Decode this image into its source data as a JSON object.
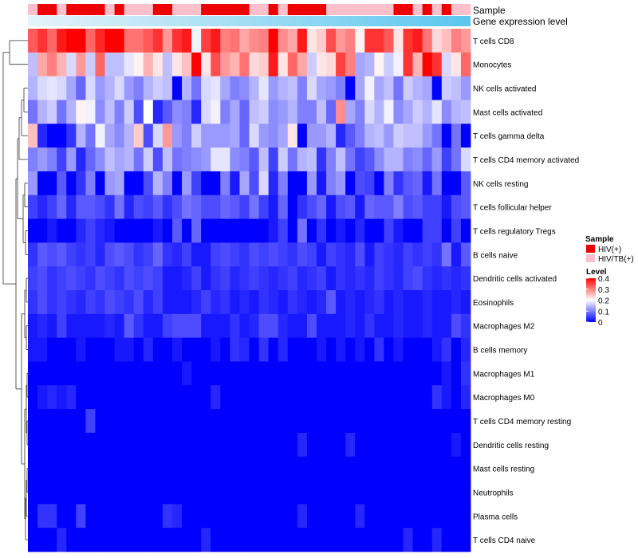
{
  "chart_data": {
    "type": "heatmap",
    "value_range": [
      0,
      0.4
    ],
    "annotation_rows": [
      "Sample",
      "Gene expression level"
    ],
    "sample_groups": [
      "HIV/TB(+)",
      "HIV(+)",
      "HIV(+)",
      "HIV/TB(+)",
      "HIV(+)",
      "HIV(+)",
      "HIV(+)",
      "HIV(+)",
      "HIV/TB(+)",
      "HIV(+)",
      "HIV/TB(+)",
      "HIV/TB(+)",
      "HIV/TB(+)",
      "HIV(+)",
      "HIV(+)",
      "HIV/TB(+)",
      "HIV/TB(+)",
      "HIV/TB(+)",
      "HIV(+)",
      "HIV(+)",
      "HIV(+)",
      "HIV(+)",
      "HIV(+)",
      "HIV/TB(+)",
      "HIV/TB(+)",
      "HIV(+)",
      "HIV/TB(+)",
      "HIV(+)",
      "HIV(+)",
      "HIV(+)",
      "HIV(+)",
      "HIV/TB(+)",
      "HIV/TB(+)",
      "HIV/TB(+)",
      "HIV/TB(+)",
      "HIV/TB(+)",
      "HIV/TB(+)",
      "HIV/TB(+)",
      "HIV(+)",
      "HIV(+)",
      "HIV/TB(+)",
      "HIV(+)",
      "HIV/TB(+)",
      "HIV(+)",
      "HIV/TB(+)",
      "HIV/TB(+)"
    ],
    "rows": [
      "T cells CD8",
      "Monocytes",
      "NK cells activated",
      "Mast cells activated",
      "T cells gamma delta",
      "T cells CD4 memory activated",
      "NK cells resting",
      "T cells follicular helper",
      "T cells regulatory  Tregs",
      "B cells naive",
      "Dendritic cells activated",
      "Eosinophils",
      "Macrophages M2",
      "B cells memory",
      "Macrophages M1",
      "Macrophages M0",
      "T cells CD4 memory resting",
      "Dendritic cells resting",
      "Mast cells resting",
      "Neutrophils",
      "Plasma cells",
      "T cells CD4 naive"
    ],
    "values": [
      [
        0.33,
        0.36,
        0.32,
        0.38,
        0.4,
        0.4,
        0.32,
        0.37,
        0.4,
        0.4,
        0.31,
        0.31,
        0.33,
        0.36,
        0.28,
        0.36,
        0.38,
        0.19,
        0.35,
        0.38,
        0.3,
        0.31,
        0.27,
        0.29,
        0.3,
        0.4,
        0.29,
        0.27,
        0.38,
        0.22,
        0.24,
        0.34,
        0.28,
        0.3,
        0.21,
        0.36,
        0.36,
        0.33,
        0.22,
        0.36,
        0.38,
        0.31,
        0.23,
        0.25,
        0.3,
        0.28
      ],
      [
        0.15,
        0.27,
        0.3,
        0.26,
        0.17,
        0.28,
        0.16,
        0.32,
        0.15,
        0.15,
        0.18,
        0.21,
        0.26,
        0.22,
        0.15,
        0.22,
        0.25,
        0.4,
        0.22,
        0.34,
        0.28,
        0.26,
        0.31,
        0.23,
        0.24,
        0.38,
        0.22,
        0.32,
        0.27,
        0.16,
        0.22,
        0.23,
        0.35,
        0.3,
        0.13,
        0.14,
        0.21,
        0.16,
        0.19,
        0.36,
        0.26,
        0.4,
        0.36,
        0.17,
        0.22,
        0.32
      ],
      [
        0.14,
        0.17,
        0.18,
        0.17,
        0.13,
        0.08,
        0.17,
        0.12,
        0.14,
        0.17,
        0.12,
        0.1,
        0.14,
        0.16,
        0.15,
        0.0,
        0.14,
        0.09,
        0.17,
        0.18,
        0.13,
        0.1,
        0.11,
        0.14,
        0.18,
        0.12,
        0.14,
        0.15,
        0.1,
        0.17,
        0.13,
        0.12,
        0.1,
        0.0,
        0.13,
        0.19,
        0.13,
        0.15,
        0.09,
        0.16,
        0.14,
        0.13,
        0.0,
        0.16,
        0.15,
        0.12
      ],
      [
        0.09,
        0.14,
        0.16,
        0.09,
        0.14,
        0.21,
        0.19,
        0.11,
        0.15,
        0.1,
        0.16,
        0.06,
        0.2,
        0.03,
        0.07,
        0.11,
        0.1,
        0.03,
        0.17,
        0.19,
        0.1,
        0.13,
        0.08,
        0.15,
        0.16,
        0.11,
        0.12,
        0.14,
        0.1,
        0.1,
        0.15,
        0.08,
        0.29,
        0.13,
        0.1,
        0.17,
        0.14,
        0.19,
        0.11,
        0.13,
        0.16,
        0.14,
        0.18,
        0.11,
        0.14,
        0.15
      ],
      [
        0.25,
        0.03,
        0.0,
        0.0,
        0.04,
        0.14,
        0.09,
        0.19,
        0.13,
        0.11,
        0.14,
        0.24,
        0.06,
        0.17,
        0.28,
        0.12,
        0.1,
        0.16,
        0.12,
        0.12,
        0.12,
        0.13,
        0.08,
        0.17,
        0.12,
        0.11,
        0.13,
        0.22,
        0.0,
        0.12,
        0.12,
        0.14,
        0.03,
        0.07,
        0.1,
        0.14,
        0.15,
        0.12,
        0.16,
        0.15,
        0.15,
        0.12,
        0.09,
        0.0,
        0.09,
        0.0
      ],
      [
        0.1,
        0.12,
        0.1,
        0.05,
        0.12,
        0.03,
        0.08,
        0.11,
        0.15,
        0.13,
        0.14,
        0.09,
        0.16,
        0.06,
        0.15,
        0.09,
        0.1,
        0.11,
        0.12,
        0.18,
        0.18,
        0.11,
        0.1,
        0.07,
        0.15,
        0.05,
        0.16,
        0.09,
        0.14,
        0.15,
        0.04,
        0.1,
        0.15,
        0.09,
        0.05,
        0.07,
        0.11,
        0.14,
        0.14,
        0.1,
        0.11,
        0.08,
        0.12,
        0.05,
        0.09,
        0.17
      ],
      [
        0.12,
        0.0,
        0.0,
        0.07,
        0.0,
        0.04,
        0.1,
        0.0,
        0.12,
        0.13,
        0.0,
        0.0,
        0.06,
        0.14,
        0.1,
        0.0,
        0.12,
        0.05,
        0.0,
        0.0,
        0.1,
        0.02,
        0.13,
        0.06,
        0.17,
        0.03,
        0.1,
        0.0,
        0.0,
        0.12,
        0.02,
        0.1,
        0.12,
        0.0,
        0.06,
        0.05,
        0.0,
        0.1,
        0.04,
        0.07,
        0.08,
        0.02,
        0.09,
        0.0,
        0.0,
        0.07
      ],
      [
        0.05,
        0.03,
        0.05,
        0.08,
        0.03,
        0.07,
        0.07,
        0.06,
        0.04,
        0.09,
        0.03,
        0.06,
        0.05,
        0.07,
        0.04,
        0.06,
        0.09,
        0.08,
        0.06,
        0.06,
        0.08,
        0.07,
        0.05,
        0.09,
        0.05,
        0.02,
        0.08,
        0.0,
        0.04,
        0.06,
        0.08,
        0.02,
        0.06,
        0.07,
        0.02,
        0.08,
        0.07,
        0.07,
        0.1,
        0.06,
        0.07,
        0.05,
        0.05,
        0.02,
        0.06,
        0.07
      ],
      [
        0.0,
        0.0,
        0.02,
        0.0,
        0.0,
        0.03,
        0.05,
        0.03,
        0.02,
        0.0,
        0.0,
        0.0,
        0.0,
        0.02,
        0.0,
        0.07,
        0.0,
        0.08,
        0.0,
        0.0,
        0.0,
        0.0,
        0.0,
        0.0,
        0.0,
        0.02,
        0.05,
        0.0,
        0.09,
        0.0,
        0.04,
        0.0,
        0.02,
        0.0,
        0.03,
        0.0,
        0.0,
        0.05,
        0.02,
        0.0,
        0.0,
        0.05,
        0.05,
        0.0,
        0.05,
        0.0
      ],
      [
        0.04,
        0.07,
        0.06,
        0.07,
        0.05,
        0.04,
        0.05,
        0.03,
        0.06,
        0.07,
        0.06,
        0.04,
        0.05,
        0.08,
        0.04,
        0.03,
        0.05,
        0.02,
        0.02,
        0.05,
        0.06,
        0.05,
        0.04,
        0.06,
        0.05,
        0.06,
        0.05,
        0.04,
        0.06,
        0.05,
        0.02,
        0.05,
        0.04,
        0.03,
        0.06,
        0.02,
        0.05,
        0.04,
        0.03,
        0.05,
        0.04,
        0.05,
        0.04,
        0.09,
        0.02,
        0.07
      ],
      [
        0.05,
        0.06,
        0.04,
        0.05,
        0.06,
        0.05,
        0.04,
        0.06,
        0.05,
        0.04,
        0.06,
        0.05,
        0.06,
        0.05,
        0.02,
        0.02,
        0.03,
        0.05,
        0.02,
        0.04,
        0.05,
        0.03,
        0.04,
        0.05,
        0.04,
        0.03,
        0.04,
        0.05,
        0.03,
        0.04,
        0.05,
        0.02,
        0.04,
        0.03,
        0.04,
        0.03,
        0.05,
        0.04,
        0.03,
        0.05,
        0.06,
        0.04,
        0.03,
        0.04,
        0.03,
        0.04
      ],
      [
        0.04,
        0.06,
        0.04,
        0.05,
        0.04,
        0.03,
        0.05,
        0.04,
        0.06,
        0.05,
        0.04,
        0.06,
        0.03,
        0.05,
        0.02,
        0.02,
        0.02,
        0.03,
        0.05,
        0.03,
        0.04,
        0.02,
        0.03,
        0.02,
        0.04,
        0.03,
        0.02,
        0.04,
        0.03,
        0.02,
        0.03,
        0.07,
        0.02,
        0.03,
        0.02,
        0.03,
        0.04,
        0.02,
        0.03,
        0.02,
        0.02,
        0.03,
        0.02,
        0.02,
        0.03,
        0.02
      ],
      [
        0.02,
        0.03,
        0.02,
        0.05,
        0.02,
        0.02,
        0.02,
        0.02,
        0.03,
        0.02,
        0.07,
        0.04,
        0.02,
        0.02,
        0.05,
        0.06,
        0.06,
        0.06,
        0.02,
        0.02,
        0.02,
        0.04,
        0.02,
        0.03,
        0.06,
        0.06,
        0.03,
        0.02,
        0.02,
        0.06,
        0.02,
        0.02,
        0.02,
        0.03,
        0.02,
        0.04,
        0.02,
        0.02,
        0.03,
        0.02,
        0.02,
        0.03,
        0.02,
        0.02,
        0.06,
        0.04
      ],
      [
        0.02,
        0.02,
        0.0,
        0.0,
        0.0,
        0.02,
        0.0,
        0.0,
        0.0,
        0.02,
        0.02,
        0.0,
        0.03,
        0.0,
        0.0,
        0.02,
        0.0,
        0.0,
        0.0,
        0.02,
        0.0,
        0.04,
        0.03,
        0.0,
        0.04,
        0.0,
        0.03,
        0.0,
        0.0,
        0.0,
        0.02,
        0.0,
        0.02,
        0.0,
        0.02,
        0.0,
        0.04,
        0.0,
        0.02,
        0.0,
        0.0,
        0.0,
        0.02,
        0.04,
        0.0,
        0.03
      ],
      [
        0.0,
        0.0,
        0.0,
        0.0,
        0.0,
        0.0,
        0.0,
        0.0,
        0.0,
        0.0,
        0.0,
        0.0,
        0.0,
        0.0,
        0.0,
        0.0,
        0.02,
        0.0,
        0.0,
        0.0,
        0.0,
        0.0,
        0.0,
        0.0,
        0.0,
        0.0,
        0.0,
        0.0,
        0.0,
        0.0,
        0.0,
        0.0,
        0.0,
        0.0,
        0.0,
        0.0,
        0.0,
        0.0,
        0.0,
        0.0,
        0.0,
        0.0,
        0.0,
        0.02,
        0.0,
        0.04
      ],
      [
        0.0,
        0.02,
        0.03,
        0.02,
        0.03,
        0.0,
        0.0,
        0.0,
        0.0,
        0.0,
        0.0,
        0.0,
        0.0,
        0.0,
        0.0,
        0.0,
        0.0,
        0.0,
        0.0,
        0.03,
        0.0,
        0.0,
        0.0,
        0.0,
        0.0,
        0.0,
        0.0,
        0.0,
        0.0,
        0.0,
        0.0,
        0.0,
        0.0,
        0.0,
        0.0,
        0.0,
        0.0,
        0.0,
        0.0,
        0.0,
        0.0,
        0.0,
        0.04,
        0.02,
        0.0,
        0.03
      ],
      [
        0.0,
        0.0,
        0.0,
        0.0,
        0.0,
        0.0,
        0.05,
        0.0,
        0.0,
        0.0,
        0.0,
        0.0,
        0.0,
        0.0,
        0.0,
        0.0,
        0.0,
        0.0,
        0.0,
        0.0,
        0.0,
        0.0,
        0.0,
        0.0,
        0.0,
        0.0,
        0.0,
        0.0,
        0.0,
        0.0,
        0.0,
        0.0,
        0.0,
        0.0,
        0.0,
        0.0,
        0.0,
        0.0,
        0.0,
        0.0,
        0.0,
        0.0,
        0.0,
        0.0,
        0.0,
        0.0
      ],
      [
        0.0,
        0.0,
        0.0,
        0.0,
        0.0,
        0.0,
        0.0,
        0.0,
        0.0,
        0.0,
        0.0,
        0.0,
        0.0,
        0.0,
        0.0,
        0.0,
        0.0,
        0.0,
        0.0,
        0.0,
        0.0,
        0.0,
        0.0,
        0.0,
        0.0,
        0.0,
        0.0,
        0.0,
        0.03,
        0.0,
        0.0,
        0.0,
        0.0,
        0.03,
        0.0,
        0.0,
        0.0,
        0.0,
        0.0,
        0.0,
        0.0,
        0.0,
        0.0,
        0.0,
        0.02,
        0.0
      ],
      [
        0.0,
        0.0,
        0.0,
        0.0,
        0.0,
        0.0,
        0.0,
        0.0,
        0.0,
        0.0,
        0.0,
        0.0,
        0.0,
        0.0,
        0.0,
        0.0,
        0.0,
        0.0,
        0.0,
        0.0,
        0.0,
        0.0,
        0.0,
        0.0,
        0.0,
        0.0,
        0.0,
        0.0,
        0.0,
        0.0,
        0.0,
        0.0,
        0.0,
        0.0,
        0.0,
        0.0,
        0.0,
        0.0,
        0.0,
        0.0,
        0.0,
        0.0,
        0.0,
        0.0,
        0.0,
        0.0
      ],
      [
        0.0,
        0.0,
        0.0,
        0.0,
        0.0,
        0.0,
        0.0,
        0.0,
        0.0,
        0.0,
        0.0,
        0.0,
        0.0,
        0.0,
        0.0,
        0.0,
        0.0,
        0.0,
        0.0,
        0.0,
        0.0,
        0.0,
        0.0,
        0.0,
        0.0,
        0.0,
        0.0,
        0.0,
        0.0,
        0.0,
        0.0,
        0.0,
        0.0,
        0.0,
        0.0,
        0.0,
        0.0,
        0.0,
        0.0,
        0.0,
        0.0,
        0.0,
        0.0,
        0.0,
        0.0,
        0.0
      ],
      [
        0.0,
        0.04,
        0.04,
        0.0,
        0.0,
        0.05,
        0.0,
        0.0,
        0.0,
        0.0,
        0.0,
        0.0,
        0.0,
        0.0,
        0.04,
        0.03,
        0.0,
        0.0,
        0.0,
        0.0,
        0.0,
        0.0,
        0.0,
        0.0,
        0.0,
        0.0,
        0.0,
        0.0,
        0.03,
        0.0,
        0.0,
        0.0,
        0.0,
        0.0,
        0.03,
        0.0,
        0.0,
        0.0,
        0.0,
        0.0,
        0.0,
        0.0,
        0.0,
        0.0,
        0.0,
        0.0
      ],
      [
        0.0,
        0.0,
        0.0,
        0.03,
        0.0,
        0.0,
        0.0,
        0.0,
        0.0,
        0.0,
        0.0,
        0.0,
        0.0,
        0.0,
        0.0,
        0.0,
        0.0,
        0.0,
        0.03,
        0.0,
        0.0,
        0.0,
        0.0,
        0.0,
        0.0,
        0.0,
        0.0,
        0.0,
        0.0,
        0.0,
        0.0,
        0.0,
        0.0,
        0.0,
        0.0,
        0.0,
        0.0,
        0.0,
        0.0,
        0.03,
        0.0,
        0.0,
        0.03,
        0.0,
        0.0,
        0.0
      ]
    ],
    "legend": {
      "sample_title": "Sample",
      "sample_entries": [
        {
          "label": "HIV(+)",
          "color": "#ee0000"
        },
        {
          "label": "HIV/TB(+)",
          "color": "#ffc0cb"
        }
      ],
      "level_title": "Level",
      "level_ticks": [
        "0.4",
        "0.3",
        "0.2",
        "0.1",
        "0"
      ]
    },
    "colors": {
      "low": "#0000ff",
      "mid": "#ffffff",
      "high": "#ff0000",
      "expression_bar_start": "#e6f3fb",
      "expression_bar_end": "#5bc6ee"
    }
  }
}
